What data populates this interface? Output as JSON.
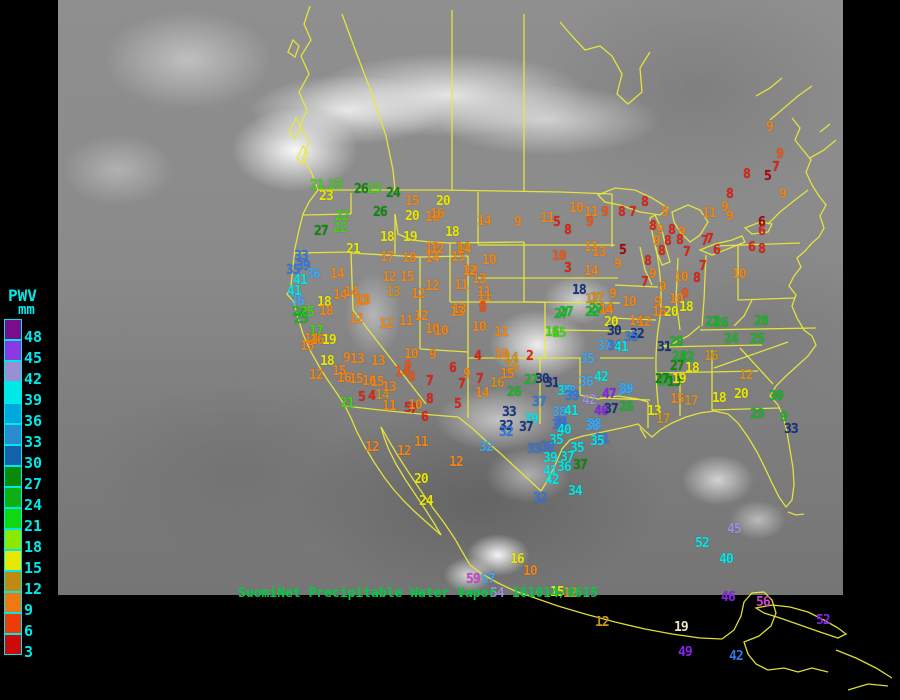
{
  "caption": {
    "prefix": "SuomiNet Precipitable Water Vapor",
    "datetime": "161014/0615"
  },
  "legend": {
    "title": "PWV",
    "unit": "mm",
    "entries": [
      {
        "label": "48",
        "color": "#7a0d8c"
      },
      {
        "label": "45",
        "color": "#8a3ae0"
      },
      {
        "label": "42",
        "color": "#9a8fd0"
      },
      {
        "label": "39",
        "color": "#00e8e8"
      },
      {
        "label": "36",
        "color": "#00a8dc"
      },
      {
        "label": "33",
        "color": "#2a8cd0"
      },
      {
        "label": "30",
        "color": "#1460aa"
      },
      {
        "label": "27",
        "color": "#0a8a0a"
      },
      {
        "label": "24",
        "color": "#0fae12"
      },
      {
        "label": "21",
        "color": "#10d810"
      },
      {
        "label": "18",
        "color": "#8ce800"
      },
      {
        "label": "15",
        "color": "#e8e800"
      },
      {
        "label": "12",
        "color": "#c08a10"
      },
      {
        "label": "9",
        "color": "#f07810"
      },
      {
        "label": "6",
        "color": "#ee3c08"
      },
      {
        "label": "3",
        "color": "#cc0a0a"
      }
    ]
  },
  "palette": {
    "purple": "#8822ee",
    "magenta": "#cc44cc",
    "lavender": "#9f8fdf",
    "cyan": "#00e8e8",
    "lightblue": "#3fa8f0",
    "blue": "#3377e0",
    "darknavy": "#16337f",
    "darkgreen": "#0a8a0a",
    "green": "#15b825",
    "brightgreen": "#3fd414",
    "yellow": "#e8e800",
    "gold": "#cf9022",
    "orange": "#f08518",
    "redorange": "#f05410",
    "red": "#e02010",
    "darkred": "#b00000",
    "pale": "#e6e6c8"
  },
  "stations": [
    [
      "21",
      318,
      186,
      "brightgreen"
    ],
    [
      "23",
      336,
      186,
      "brightgreen"
    ],
    [
      "23",
      327,
      197,
      "yellow"
    ],
    [
      "26",
      362,
      190,
      "darkgreen"
    ],
    [
      "23",
      375,
      190,
      "brightgreen"
    ],
    [
      "24",
      394,
      194,
      "darkgreen"
    ],
    [
      "15",
      413,
      202,
      "orange"
    ],
    [
      "20",
      444,
      202,
      "yellow"
    ],
    [
      "22",
      343,
      217,
      "brightgreen"
    ],
    [
      "26",
      381,
      213,
      "darkgreen"
    ],
    [
      "20",
      413,
      217,
      "yellow"
    ],
    [
      "16",
      433,
      218,
      "orange"
    ],
    [
      "27",
      322,
      232,
      "darkgreen"
    ],
    [
      "22",
      341,
      229,
      "brightgreen"
    ],
    [
      "18",
      388,
      238,
      "yellow"
    ],
    [
      "19",
      411,
      238,
      "yellow"
    ],
    [
      "21",
      354,
      250,
      "yellow"
    ],
    [
      "12",
      433,
      249,
      "orange"
    ],
    [
      "14",
      463,
      249,
      "gold"
    ],
    [
      "17",
      388,
      258,
      "orange"
    ],
    [
      "18",
      410,
      259,
      "orange"
    ],
    [
      "14",
      433,
      259,
      "orange"
    ],
    [
      "15",
      459,
      258,
      "orange"
    ],
    [
      "33",
      302,
      257,
      "blue"
    ],
    [
      "39",
      304,
      267,
      "blue"
    ],
    [
      "35",
      294,
      271,
      "blue"
    ],
    [
      "36",
      314,
      275,
      "lightblue"
    ],
    [
      "41",
      301,
      281,
      "cyan"
    ],
    [
      "14",
      338,
      275,
      "orange"
    ],
    [
      "12",
      390,
      278,
      "orange"
    ],
    [
      "15",
      408,
      278,
      "orange"
    ],
    [
      "12",
      472,
      272,
      "orange"
    ],
    [
      "11",
      462,
      286,
      "orange"
    ],
    [
      "13",
      480,
      280,
      "orange"
    ],
    [
      "12",
      433,
      287,
      "orange"
    ],
    [
      "14",
      341,
      296,
      "orange"
    ],
    [
      "14",
      352,
      293,
      "orange"
    ],
    [
      "13",
      364,
      301,
      "orange"
    ],
    [
      "13",
      394,
      293,
      "gold"
    ],
    [
      "12",
      419,
      295,
      "orange"
    ],
    [
      "16",
      438,
      215,
      "orange"
    ],
    [
      "14",
      485,
      222,
      "orange"
    ],
    [
      "9",
      518,
      223,
      "orange"
    ],
    [
      "11",
      548,
      219,
      "orange"
    ],
    [
      "10",
      577,
      209,
      "orange"
    ],
    [
      "11",
      592,
      213,
      "orange"
    ],
    [
      "9",
      605,
      213,
      "redorange"
    ],
    [
      "5",
      557,
      223,
      "red"
    ],
    [
      "8",
      568,
      231,
      "red"
    ],
    [
      "9",
      590,
      223,
      "redorange"
    ],
    [
      "18",
      453,
      233,
      "yellow"
    ],
    [
      "12",
      438,
      250,
      "orange"
    ],
    [
      "14",
      465,
      250,
      "orange"
    ],
    [
      "10",
      490,
      261,
      "orange"
    ],
    [
      "10",
      560,
      257,
      "redorange"
    ],
    [
      "11",
      592,
      248,
      "orange"
    ],
    [
      "13",
      600,
      253,
      "orange"
    ],
    [
      "12",
      470,
      272,
      "orange"
    ],
    [
      "3",
      568,
      269,
      "red"
    ],
    [
      "14",
      592,
      272,
      "orange"
    ],
    [
      "11",
      485,
      293,
      "orange"
    ],
    [
      "18",
      580,
      291,
      "darknavy"
    ],
    [
      "17",
      598,
      299,
      "gold"
    ],
    [
      "13",
      460,
      310,
      "orange"
    ],
    [
      "9",
      483,
      309,
      "redorange"
    ],
    [
      "27",
      567,
      313,
      "green"
    ],
    [
      "27",
      597,
      310,
      "green"
    ],
    [
      "14",
      607,
      309,
      "orange"
    ],
    [
      "8",
      730,
      195,
      "red"
    ],
    [
      "9",
      783,
      195,
      "orange"
    ],
    [
      "8",
      645,
      203,
      "red"
    ],
    [
      "9",
      665,
      213,
      "orange"
    ],
    [
      "8",
      622,
      213,
      "red"
    ],
    [
      "7",
      633,
      213,
      "red"
    ],
    [
      "11",
      710,
      214,
      "orange"
    ],
    [
      "9",
      725,
      208,
      "orange"
    ],
    [
      "9",
      730,
      217,
      "orange"
    ],
    [
      "6",
      762,
      223,
      "darkred"
    ],
    [
      "6",
      762,
      232,
      "red"
    ],
    [
      "8",
      653,
      227,
      "red"
    ],
    [
      "9",
      660,
      231,
      "orange"
    ],
    [
      "8",
      672,
      231,
      "red"
    ],
    [
      "9",
      682,
      233,
      "orange"
    ],
    [
      "9",
      657,
      242,
      "orange"
    ],
    [
      "8",
      668,
      242,
      "red"
    ],
    [
      "8",
      680,
      241,
      "red"
    ],
    [
      "7",
      705,
      242,
      "red"
    ],
    [
      "7",
      710,
      240,
      "red"
    ],
    [
      "5",
      623,
      251,
      "darkred"
    ],
    [
      "8",
      662,
      252,
      "red"
    ],
    [
      "7",
      687,
      253,
      "red"
    ],
    [
      "6",
      717,
      251,
      "red"
    ],
    [
      "6",
      752,
      248,
      "red"
    ],
    [
      "8",
      762,
      250,
      "red"
    ],
    [
      "9",
      618,
      265,
      "orange"
    ],
    [
      "8",
      648,
      262,
      "red"
    ],
    [
      "7",
      703,
      267,
      "red"
    ],
    [
      "9",
      653,
      275,
      "orange"
    ],
    [
      "7",
      645,
      283,
      "red"
    ],
    [
      "10",
      682,
      278,
      "orange"
    ],
    [
      "8",
      697,
      279,
      "red"
    ],
    [
      "10",
      740,
      275,
      "orange"
    ],
    [
      "9",
      613,
      295,
      "orange"
    ],
    [
      "9",
      663,
      288,
      "orange"
    ],
    [
      "10",
      630,
      303,
      "orange"
    ],
    [
      "9",
      685,
      295,
      "redorange"
    ],
    [
      "10",
      677,
      300,
      "orange"
    ],
    [
      "9",
      770,
      128,
      "orange"
    ],
    [
      "9",
      780,
      155,
      "redorange"
    ],
    [
      "7",
      776,
      168,
      "red"
    ],
    [
      "8",
      747,
      175,
      "red"
    ],
    [
      "5",
      768,
      177,
      "darkred"
    ],
    [
      "41",
      295,
      292,
      "cyan"
    ],
    [
      "36",
      298,
      302,
      "lightblue"
    ],
    [
      "18",
      325,
      303,
      "yellow"
    ],
    [
      "13",
      362,
      302,
      "orange"
    ],
    [
      "24",
      300,
      313,
      "green"
    ],
    [
      "25",
      308,
      313,
      "brightgreen"
    ],
    [
      "25",
      302,
      320,
      "green"
    ],
    [
      "18",
      327,
      312,
      "orange"
    ],
    [
      "12",
      357,
      320,
      "orange"
    ],
    [
      "12",
      387,
      325,
      "orange"
    ],
    [
      "11",
      407,
      322,
      "orange"
    ],
    [
      "12",
      422,
      317,
      "orange"
    ],
    [
      "10",
      433,
      330,
      "orange"
    ],
    [
      "10",
      442,
      332,
      "orange"
    ],
    [
      "17",
      317,
      332,
      "brightgreen"
    ],
    [
      "14",
      312,
      340,
      "orange"
    ],
    [
      "16",
      318,
      341,
      "orange"
    ],
    [
      "19",
      330,
      341,
      "yellow"
    ],
    [
      "15",
      308,
      347,
      "orange"
    ],
    [
      "18",
      328,
      362,
      "yellow"
    ],
    [
      "9",
      347,
      359,
      "orange"
    ],
    [
      "13",
      358,
      360,
      "orange"
    ],
    [
      "13",
      379,
      362,
      "orange"
    ],
    [
      "10",
      412,
      355,
      "orange"
    ],
    [
      "9",
      433,
      356,
      "orange"
    ],
    [
      "6",
      453,
      369,
      "red"
    ],
    [
      "12",
      317,
      376,
      "orange"
    ],
    [
      "15",
      340,
      372,
      "orange"
    ],
    [
      "9",
      408,
      367,
      "redorange"
    ],
    [
      "14",
      403,
      373,
      "redorange"
    ],
    [
      "8",
      412,
      378,
      "redorange"
    ],
    [
      "7",
      430,
      382,
      "red"
    ],
    [
      "16",
      345,
      379,
      "orange"
    ],
    [
      "15",
      357,
      380,
      "orange"
    ],
    [
      "16",
      370,
      382,
      "orange"
    ],
    [
      "15",
      378,
      383,
      "orange"
    ],
    [
      "5",
      362,
      398,
      "red"
    ],
    [
      "4",
      372,
      397,
      "red"
    ],
    [
      "14",
      383,
      396,
      "gold"
    ],
    [
      "13",
      390,
      388,
      "orange"
    ],
    [
      "21",
      348,
      404,
      "brightgreen"
    ],
    [
      "11",
      390,
      407,
      "orange"
    ],
    [
      "5",
      408,
      409,
      "red"
    ],
    [
      "7",
      414,
      410,
      "red"
    ],
    [
      "10",
      416,
      406,
      "orange"
    ],
    [
      "8",
      430,
      400,
      "red"
    ],
    [
      "6",
      425,
      418,
      "red"
    ],
    [
      "5",
      458,
      405,
      "red"
    ],
    [
      "13",
      458,
      313,
      "orange"
    ],
    [
      "9",
      483,
      308,
      "redorange"
    ],
    [
      "11",
      485,
      298,
      "orange"
    ],
    [
      "10",
      480,
      328,
      "orange"
    ],
    [
      "11",
      502,
      333,
      "orange"
    ],
    [
      "17",
      593,
      300,
      "gold"
    ],
    [
      "27",
      562,
      315,
      "green"
    ],
    [
      "22",
      593,
      313,
      "green"
    ],
    [
      "14",
      607,
      311,
      "orange"
    ],
    [
      "20",
      612,
      323,
      "yellow"
    ],
    [
      "30",
      615,
      332,
      "darknavy"
    ],
    [
      "16",
      553,
      333,
      "brightgreen"
    ],
    [
      "15",
      560,
      334,
      "brightgreen"
    ],
    [
      "4",
      478,
      357,
      "red"
    ],
    [
      "10",
      502,
      355,
      "orange"
    ],
    [
      "14",
      512,
      359,
      "gold"
    ],
    [
      "2",
      530,
      357,
      "red"
    ],
    [
      "16",
      513,
      368,
      "gold"
    ],
    [
      "15",
      508,
      375,
      "orange"
    ],
    [
      "9",
      467,
      375,
      "orange"
    ],
    [
      "7",
      462,
      385,
      "red"
    ],
    [
      "7",
      480,
      380,
      "red"
    ],
    [
      "16",
      498,
      384,
      "gold"
    ],
    [
      "14",
      483,
      394,
      "orange"
    ],
    [
      "26",
      515,
      393,
      "green"
    ],
    [
      "27",
      532,
      381,
      "green"
    ],
    [
      "30",
      543,
      380,
      "darknavy"
    ],
    [
      "31",
      553,
      384,
      "darknavy"
    ],
    [
      "35",
      588,
      360,
      "lightblue"
    ],
    [
      "37",
      605,
      347,
      "lightblue"
    ],
    [
      "34",
      615,
      347,
      "blue"
    ],
    [
      "41",
      622,
      348,
      "cyan"
    ],
    [
      "36",
      587,
      383,
      "lightblue"
    ],
    [
      "42",
      602,
      378,
      "cyan"
    ],
    [
      "35",
      565,
      392,
      "cyan"
    ],
    [
      "38",
      570,
      392,
      "lightblue"
    ],
    [
      "39",
      573,
      397,
      "blue"
    ],
    [
      "42",
      590,
      401,
      "lavender"
    ],
    [
      "47",
      610,
      395,
      "purple"
    ],
    [
      "34",
      625,
      392,
      "lightblue"
    ],
    [
      "37",
      540,
      403,
      "blue"
    ],
    [
      "38",
      560,
      413,
      "lightblue"
    ],
    [
      "41",
      572,
      412,
      "cyan"
    ],
    [
      "46",
      602,
      412,
      "purple"
    ],
    [
      "37",
      612,
      410,
      "darknavy"
    ],
    [
      "28",
      627,
      408,
      "green"
    ],
    [
      "33",
      510,
      413,
      "darknavy"
    ],
    [
      "39",
      532,
      420,
      "cyan"
    ],
    [
      "31",
      562,
      423,
      "blue"
    ],
    [
      "38",
      595,
      425,
      "lightblue"
    ],
    [
      "32",
      507,
      427,
      "darknavy"
    ],
    [
      "37",
      527,
      428,
      "darknavy"
    ],
    [
      "39",
      627,
      390,
      "lightblue"
    ],
    [
      "27",
      665,
      382,
      "green"
    ],
    [
      "19",
      675,
      383,
      "darkgreen"
    ],
    [
      "31",
      560,
      426,
      "blue"
    ],
    [
      "40",
      565,
      431,
      "cyan"
    ],
    [
      "38",
      593,
      427,
      "lightblue"
    ],
    [
      "31",
      603,
      440,
      "blue"
    ],
    [
      "35",
      557,
      441,
      "cyan"
    ],
    [
      "35",
      578,
      449,
      "cyan"
    ],
    [
      "35",
      598,
      442,
      "cyan"
    ],
    [
      "33",
      535,
      450,
      "blue"
    ],
    [
      "38",
      548,
      448,
      "blue"
    ],
    [
      "39",
      551,
      459,
      "cyan"
    ],
    [
      "37",
      568,
      458,
      "cyan"
    ],
    [
      "36",
      565,
      468,
      "cyan"
    ],
    [
      "37",
      581,
      466,
      "darkgreen"
    ],
    [
      "41",
      551,
      472,
      "cyan"
    ],
    [
      "42",
      553,
      481,
      "cyan"
    ],
    [
      "34",
      576,
      492,
      "cyan"
    ],
    [
      "32",
      541,
      499,
      "blue"
    ],
    [
      "9",
      658,
      303,
      "orange"
    ],
    [
      "18",
      687,
      308,
      "yellow"
    ],
    [
      "16",
      660,
      313,
      "orange"
    ],
    [
      "20",
      672,
      313,
      "yellow"
    ],
    [
      "14",
      637,
      322,
      "orange"
    ],
    [
      "12",
      645,
      323,
      "orange"
    ],
    [
      "22",
      713,
      323,
      "green"
    ],
    [
      "26",
      722,
      324,
      "green"
    ],
    [
      "28",
      762,
      322,
      "green"
    ],
    [
      "32",
      638,
      335,
      "darknavy"
    ],
    [
      "35",
      632,
      338,
      "blue"
    ],
    [
      "24",
      732,
      340,
      "green"
    ],
    [
      "25",
      758,
      340,
      "green"
    ],
    [
      "31",
      665,
      348,
      "darknavy"
    ],
    [
      "28",
      677,
      343,
      "green"
    ],
    [
      "24",
      680,
      358,
      "green"
    ],
    [
      "22",
      688,
      358,
      "green"
    ],
    [
      "27",
      678,
      367,
      "darkgreen"
    ],
    [
      "16",
      712,
      357,
      "gold"
    ],
    [
      "18",
      693,
      369,
      "yellow"
    ],
    [
      "27",
      663,
      380,
      "darkgreen"
    ],
    [
      "19",
      680,
      380,
      "yellow"
    ],
    [
      "12",
      747,
      376,
      "gold"
    ],
    [
      "30",
      777,
      397,
      "green"
    ],
    [
      "20",
      742,
      395,
      "yellow"
    ],
    [
      "18",
      720,
      399,
      "yellow"
    ],
    [
      "15",
      678,
      400,
      "orange"
    ],
    [
      "17",
      692,
      402,
      "gold"
    ],
    [
      "13",
      655,
      412,
      "yellow"
    ],
    [
      "17",
      664,
      420,
      "gold"
    ],
    [
      "29",
      758,
      415,
      "green"
    ],
    [
      "9",
      784,
      418,
      "green"
    ],
    [
      "33",
      792,
      430,
      "darknavy"
    ],
    [
      "12",
      373,
      448,
      "orange"
    ],
    [
      "12",
      405,
      452,
      "orange"
    ],
    [
      "11",
      422,
      443,
      "orange"
    ],
    [
      "12",
      457,
      463,
      "orange"
    ],
    [
      "20",
      422,
      480,
      "yellow"
    ],
    [
      "24",
      427,
      502,
      "yellow"
    ],
    [
      "32",
      507,
      433,
      "blue"
    ],
    [
      "32",
      487,
      448,
      "lightblue"
    ],
    [
      "16",
      518,
      560,
      "yellow"
    ],
    [
      "10",
      531,
      572,
      "orange"
    ],
    [
      "59",
      474,
      580,
      "magenta"
    ],
    [
      "57",
      489,
      580,
      "lightblue"
    ],
    [
      "54",
      498,
      594,
      "lavender"
    ],
    [
      "15",
      558,
      593,
      "yellow"
    ],
    [
      "12",
      571,
      594,
      "orange"
    ],
    [
      "12",
      603,
      623,
      "gold"
    ],
    [
      "19",
      682,
      628,
      "pale"
    ],
    [
      "49",
      686,
      653,
      "purple"
    ],
    [
      "52",
      703,
      544,
      "cyan"
    ],
    [
      "40",
      727,
      560,
      "cyan"
    ],
    [
      "45",
      735,
      530,
      "lavender"
    ],
    [
      "46",
      729,
      598,
      "purple"
    ],
    [
      "56",
      764,
      603,
      "magenta"
    ],
    [
      "52",
      824,
      621,
      "purple"
    ],
    [
      "42",
      737,
      657,
      "blue"
    ]
  ]
}
